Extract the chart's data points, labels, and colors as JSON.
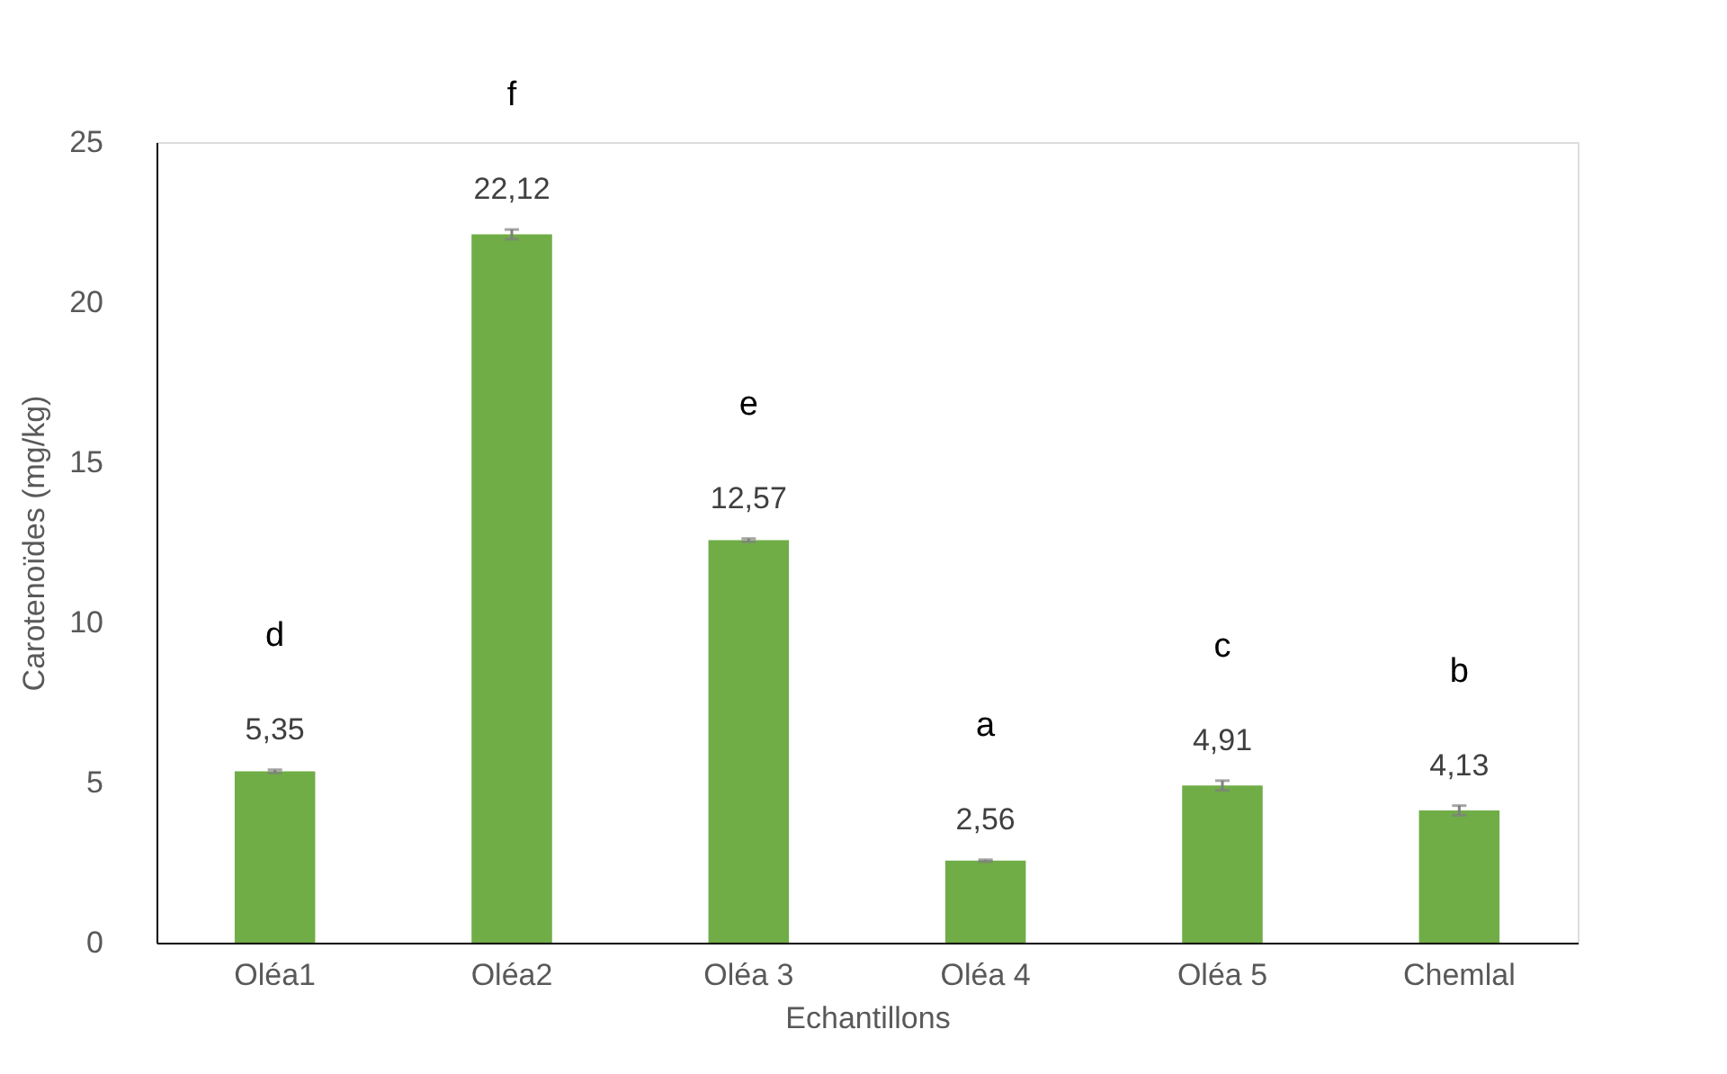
{
  "chart_data": {
    "type": "bar",
    "xlabel": "Echantillons",
    "ylabel": "Carotenoïdes (mg/kg)",
    "categories": [
      "Oléa1",
      "Oléa2",
      "Oléa 3",
      "Oléa 4",
      "Oléa 5",
      "Chemlal"
    ],
    "values": [
      5.35,
      22.12,
      12.57,
      2.56,
      4.91,
      4.13
    ],
    "value_labels": [
      "5,35",
      "22,12",
      "12,57",
      "2,56",
      "4,91",
      "4,13"
    ],
    "errors": [
      0.05,
      0.15,
      0.05,
      0.03,
      0.15,
      0.15
    ],
    "color": "#70ad47",
    "ylim": [
      0,
      25
    ],
    "yticks": [
      0,
      5,
      10,
      15,
      20,
      25
    ],
    "grid": false,
    "annotations": [
      "d",
      "f",
      "e",
      "a",
      "c",
      "b"
    ]
  }
}
